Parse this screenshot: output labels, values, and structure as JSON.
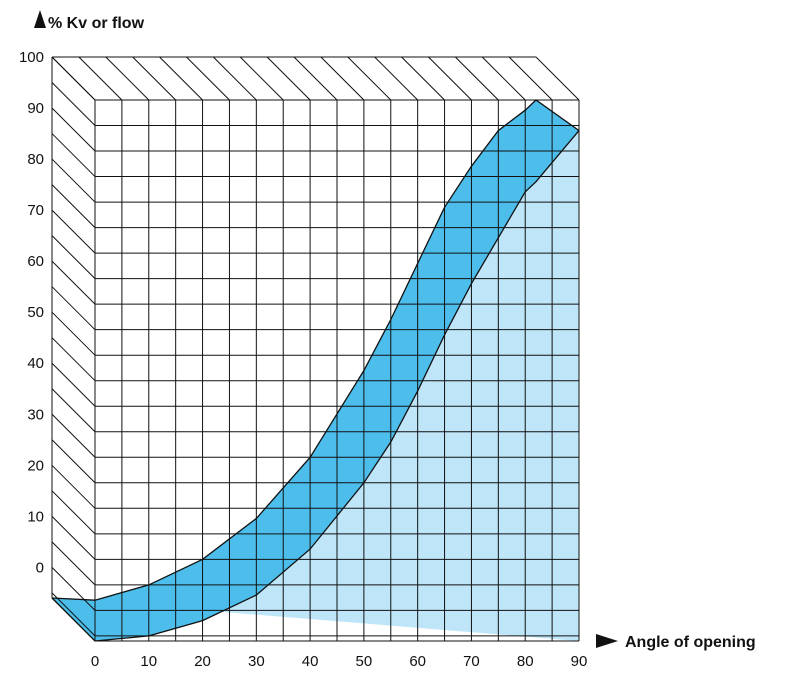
{
  "chart_data": {
    "type": "area",
    "title": "",
    "ylabel": "% Kv or flow",
    "xlabel": "Angle of opening",
    "x": [
      0,
      10,
      20,
      30,
      40,
      50,
      55,
      60,
      65,
      70,
      75,
      80,
      82,
      90
    ],
    "series": [
      {
        "values": [
          2,
          5,
          10,
          18,
          30,
          47,
          57,
          68,
          79,
          87,
          94,
          98,
          100,
          94
        ]
      },
      {
        "values": [
          -6,
          -5,
          -2,
          3,
          12,
          25,
          33,
          43,
          54,
          64,
          73,
          82,
          84,
          94
        ]
      }
    ],
    "xticks": [
      "0",
      "10",
      "20",
      "30",
      "40",
      "50",
      "60",
      "70",
      "80",
      "90"
    ],
    "yticks": [
      "0",
      "10",
      "20",
      "30",
      "40",
      "50",
      "60",
      "70",
      "80",
      "90",
      "100"
    ],
    "xlim": [
      0,
      90
    ],
    "ylim": [
      -6,
      100
    ],
    "grid": true,
    "colors": {
      "band": "#4dbeec",
      "below": "#bfe6f8",
      "grid": "#111111"
    }
  }
}
